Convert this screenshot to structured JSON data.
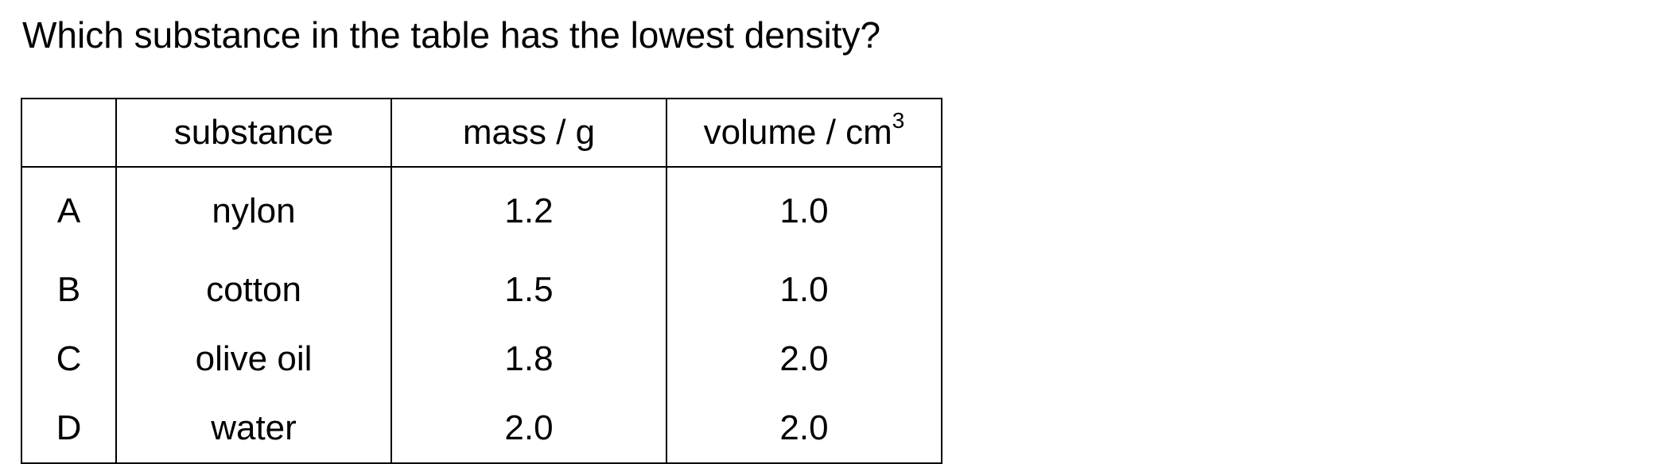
{
  "question": "Which substance in the table has the lowest density?",
  "table": {
    "headers": {
      "label": "",
      "substance": "substance",
      "mass": "mass / g",
      "volume": "volume / cm",
      "volume_sup": "3"
    },
    "rows": [
      {
        "label": "A",
        "substance": "nylon",
        "mass": "1.2",
        "volume": "1.0"
      },
      {
        "label": "B",
        "substance": "cotton",
        "mass": "1.5",
        "volume": "1.0"
      },
      {
        "label": "C",
        "substance": "olive oil",
        "mass": "1.8",
        "volume": "2.0"
      },
      {
        "label": "D",
        "substance": "water",
        "mass": "2.0",
        "volume": "2.0"
      }
    ]
  }
}
